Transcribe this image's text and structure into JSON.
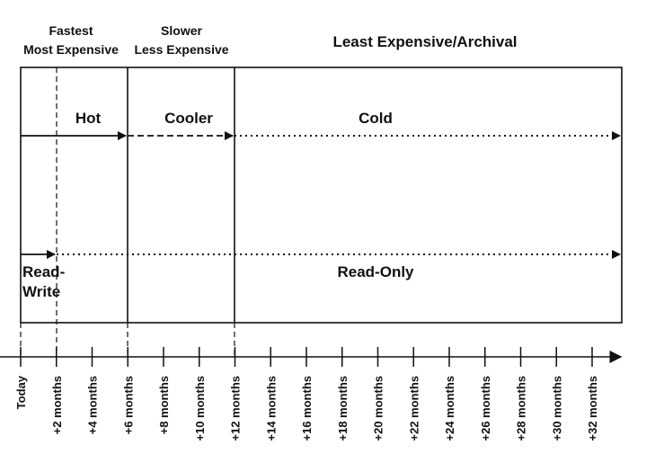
{
  "headers": {
    "tier1_line1": "Fastest",
    "tier1_line2": "Most Expensive",
    "tier2_line1": "Slower",
    "tier2_line2": "Less Expensive",
    "tier3": "Least Expensive/Archival"
  },
  "storage_tiers": {
    "hot": "Hot",
    "cooler": "Cooler",
    "cold": "Cold"
  },
  "access_modes": {
    "read_write_line1": "Read-",
    "read_write_line2": "Write",
    "read_only": "Read-Only"
  },
  "timeline": {
    "ticks": [
      "Today",
      "+2 months",
      "+4 months",
      "+6 months",
      "+8 months",
      "+10 months",
      "+12 months",
      "+14 months",
      "+16 months",
      "+18 months",
      "+20 months",
      "+22 months",
      "+24 months",
      "+26 months",
      "+28 months",
      "+30 months",
      "+32 months"
    ]
  }
}
